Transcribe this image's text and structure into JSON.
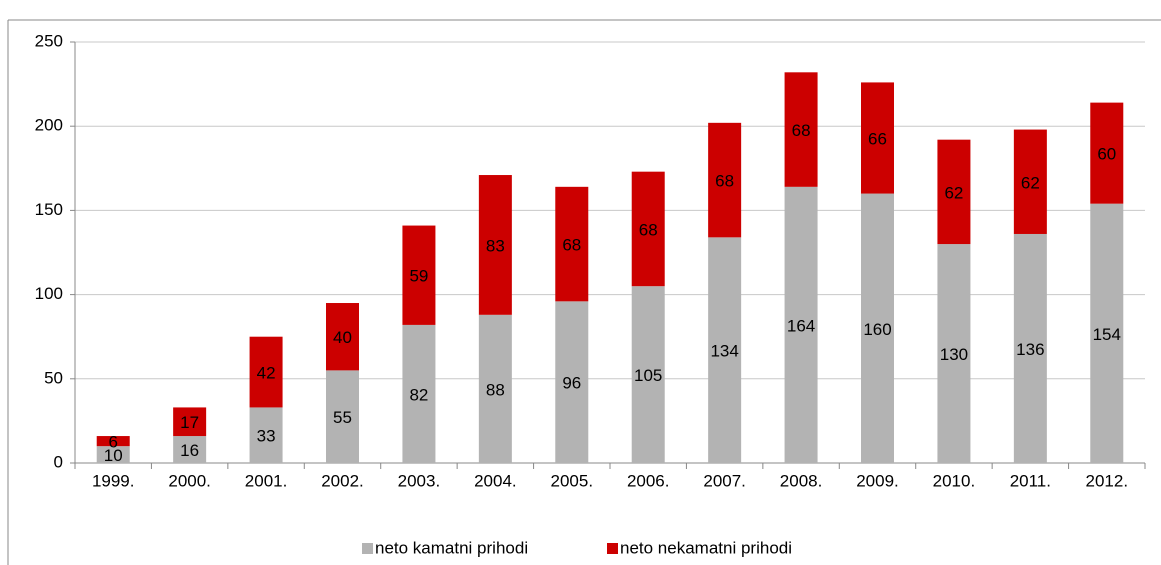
{
  "chart_data": {
    "type": "stacked_bar",
    "categories": [
      "1999.",
      "2000.",
      "2001.",
      "2002.",
      "2003.",
      "2004.",
      "2005.",
      "2006.",
      "2007.",
      "2008.",
      "2009.",
      "2010.",
      "2011.",
      "2012."
    ],
    "series": [
      {
        "name": "neto kamatni prihodi",
        "color": "#b3b3b3",
        "values": [
          10,
          16,
          33,
          55,
          82,
          88,
          96,
          105,
          134,
          164,
          160,
          130,
          136,
          154
        ]
      },
      {
        "name": "neto nekamatni prihodi",
        "color": "#cc0000",
        "values": [
          6,
          17,
          42,
          40,
          59,
          83,
          68,
          68,
          68,
          68,
          66,
          62,
          62,
          60
        ]
      }
    ],
    "ylim": [
      0,
      250
    ],
    "yticks": [
      0,
      50,
      100,
      150,
      200,
      250
    ],
    "grid": true,
    "legend": "bottom"
  }
}
